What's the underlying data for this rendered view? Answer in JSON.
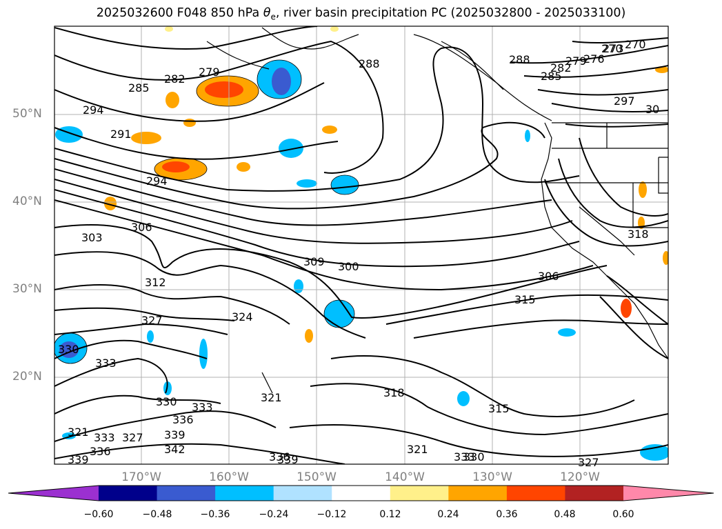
{
  "title": {
    "prefix": "2025032600 F048 850 hPa ",
    "symbol": "θ",
    "subscript": "e",
    "suffix": ", river basin precipitation PC (2025032800 - 2025033100)"
  },
  "latitude_labels": [
    "50°N",
    "40°N",
    "30°N",
    "20°N"
  ],
  "longitude_labels": [
    "170°W",
    "160°W",
    "150°W",
    "140°W",
    "130°W",
    "120°W"
  ],
  "contour_labels": [
    "270",
    "273",
    "276",
    "279",
    "282",
    "285",
    "288",
    "291",
    "294",
    "297",
    "300",
    "303",
    "306",
    "309",
    "312",
    "315",
    "318",
    "321",
    "324",
    "327",
    "330",
    "333",
    "336",
    "339",
    "342",
    "30",
    "279",
    "282",
    "285",
    "288",
    "294",
    "306",
    "315",
    "318",
    "321",
    "324",
    "327",
    "330",
    "333",
    "336"
  ],
  "colorbar": {
    "ticks": [
      "−0.60",
      "−0.48",
      "−0.36",
      "−0.24",
      "−0.12",
      "0.12",
      "0.24",
      "0.36",
      "0.48",
      "0.60"
    ],
    "colors": [
      "#9b30d0",
      "#00008b",
      "#3a5bd0",
      "#00bfff",
      "#b0e2ff",
      "#ffffff",
      "#fff08a",
      "#ffa500",
      "#ff4500",
      "#b22222",
      "#ff88aa",
      "#ff88aa"
    ],
    "under_color": "#9b30d0",
    "over_color": "#ff88aa"
  },
  "palette": {
    "gridline": "#b0b0b0",
    "coast": "#000000",
    "label_gray": "#808080"
  }
}
